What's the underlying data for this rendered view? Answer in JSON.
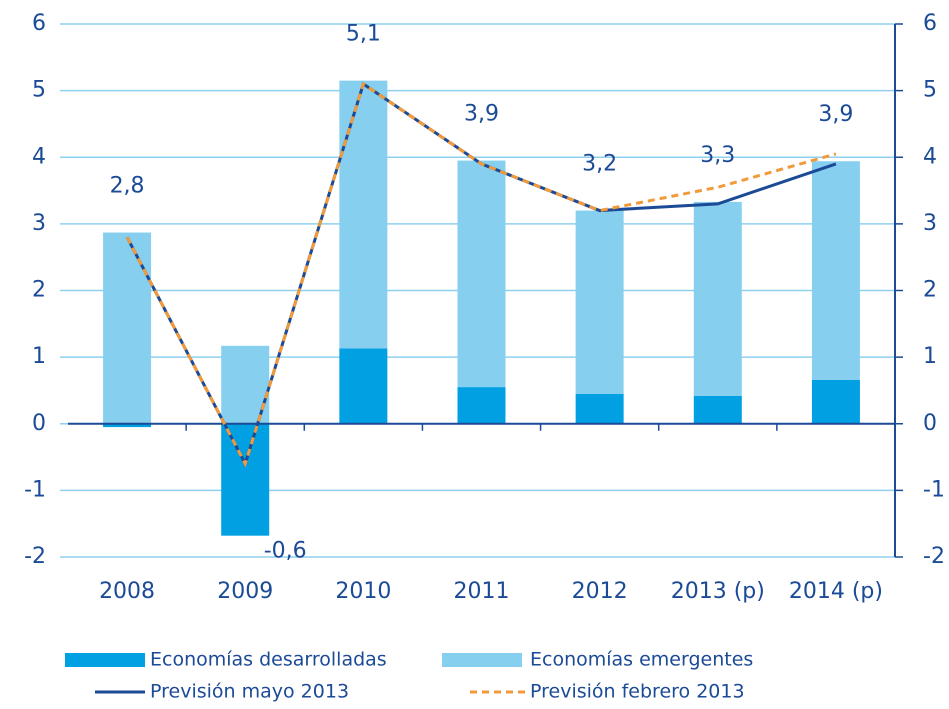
{
  "chart_data": {
    "type": "bar",
    "categories": [
      "2008",
      "2009",
      "2010",
      "2011",
      "2012",
      "2013 (p)",
      "2014 (p)"
    ],
    "series": [
      {
        "name": "Economías desarrolladas",
        "type": "bar",
        "color": "#00a0e3",
        "values": [
          -0.05,
          -1.68,
          1.13,
          0.55,
          0.45,
          0.42,
          0.66
        ]
      },
      {
        "name": "Economías emergentes",
        "type": "bar",
        "color": "#87cfef",
        "values": [
          2.87,
          1.17,
          4.02,
          3.4,
          2.75,
          2.91,
          3.28
        ]
      },
      {
        "name": "Previsión mayo 2013",
        "type": "line",
        "color": "#1b4a96",
        "values": [
          2.8,
          -0.6,
          5.1,
          3.9,
          3.2,
          3.3,
          3.9
        ],
        "value_labels": [
          "2,8",
          "-0,6",
          "5,1",
          "3,9",
          "3,2",
          "3,3",
          "3,9"
        ]
      },
      {
        "name": "Previsión febrero 2013",
        "type": "line",
        "color": "#f29a3a",
        "dashed": true,
        "values": [
          2.8,
          -0.6,
          5.1,
          3.9,
          3.2,
          3.55,
          4.05
        ]
      }
    ],
    "ylim": [
      -2,
      6
    ],
    "yticks": [
      -2,
      -1,
      0,
      1,
      2,
      3,
      4,
      5,
      6
    ],
    "y2lim": [
      -2,
      6
    ],
    "y2ticks": [
      -2,
      -1,
      0,
      1,
      2,
      3,
      4,
      5,
      6
    ],
    "grid": true
  }
}
